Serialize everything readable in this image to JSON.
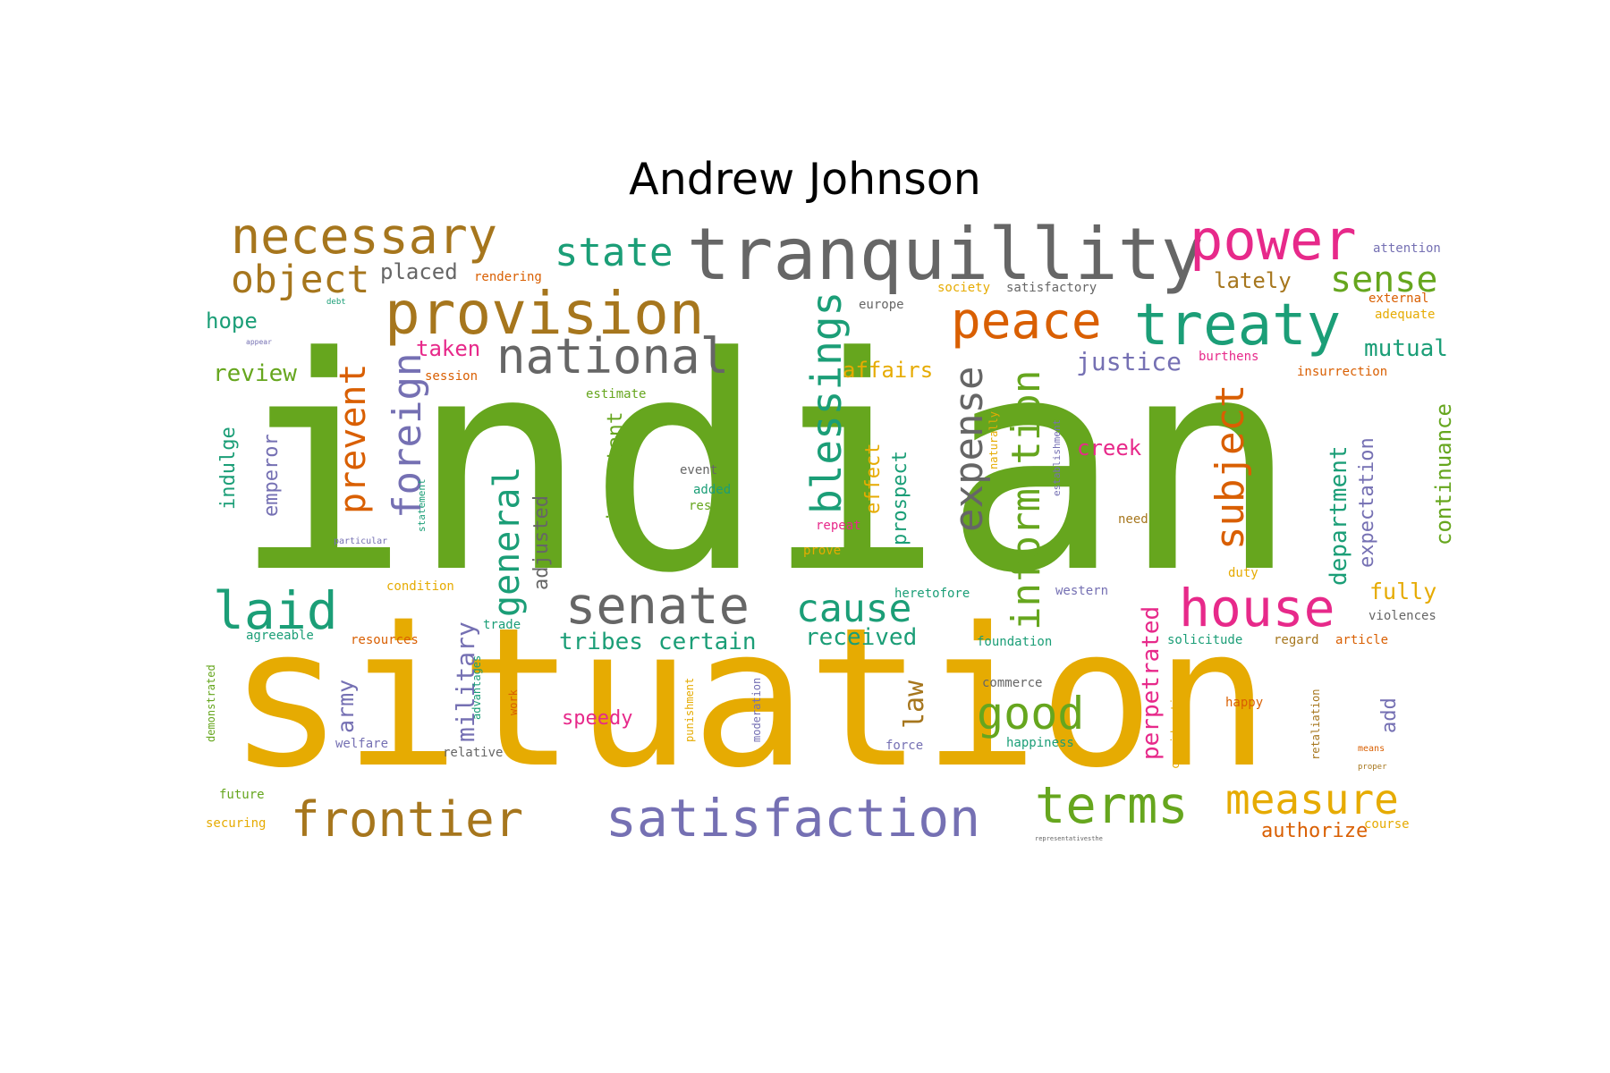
{
  "title": "Andrew Johnson",
  "palette": {
    "green": "#66a61e",
    "gold": "#e6ab02",
    "teal": "#1b9e77",
    "orange": "#d95f02",
    "purple": "#7570b3",
    "pink": "#e7298a",
    "brown": "#a6761d",
    "gray": "#666666"
  },
  "words": [
    {
      "text": "indian",
      "color": "green"
    },
    {
      "text": "situation",
      "color": "gold"
    },
    {
      "text": "tranquillity",
      "color": "gray"
    },
    {
      "text": "power",
      "color": "pink"
    },
    {
      "text": "necessary",
      "color": "brown"
    },
    {
      "text": "provision",
      "color": "brown"
    },
    {
      "text": "treaty",
      "color": "teal"
    },
    {
      "text": "peace",
      "color": "orange"
    },
    {
      "text": "national",
      "color": "gray"
    },
    {
      "text": "state",
      "color": "teal"
    },
    {
      "text": "object",
      "color": "brown"
    },
    {
      "text": "sense",
      "color": "green"
    },
    {
      "text": "senate",
      "color": "gray"
    },
    {
      "text": "house",
      "color": "pink"
    },
    {
      "text": "laid",
      "color": "teal"
    },
    {
      "text": "cause",
      "color": "teal"
    },
    {
      "text": "frontier",
      "color": "brown"
    },
    {
      "text": "satisfaction",
      "color": "purple"
    },
    {
      "text": "terms",
      "color": "green"
    },
    {
      "text": "measure",
      "color": "gold"
    },
    {
      "text": "good",
      "color": "green"
    },
    {
      "text": "blessings",
      "color": "teal"
    },
    {
      "text": "information",
      "color": "green"
    },
    {
      "text": "expense",
      "color": "gray"
    },
    {
      "text": "subject",
      "color": "orange"
    },
    {
      "text": "foreign",
      "color": "purple"
    },
    {
      "text": "prevent",
      "color": "orange"
    },
    {
      "text": "general",
      "color": "teal"
    },
    {
      "text": "justice",
      "color": "purple"
    },
    {
      "text": "mutual",
      "color": "teal"
    },
    {
      "text": "lately",
      "color": "brown"
    },
    {
      "text": "placed",
      "color": "gray"
    },
    {
      "text": "review",
      "color": "green"
    },
    {
      "text": "hope",
      "color": "teal"
    },
    {
      "text": "taken",
      "color": "pink"
    },
    {
      "text": "creek",
      "color": "pink"
    },
    {
      "text": "affairs",
      "color": "gold"
    },
    {
      "text": "fully",
      "color": "gold"
    },
    {
      "text": "received",
      "color": "teal"
    },
    {
      "text": "tribes",
      "color": "teal"
    },
    {
      "text": "certain",
      "color": "teal"
    },
    {
      "text": "military",
      "color": "purple"
    },
    {
      "text": "army",
      "color": "purple"
    },
    {
      "text": "law",
      "color": "brown"
    },
    {
      "text": "speedy",
      "color": "pink"
    },
    {
      "text": "authorize",
      "color": "orange"
    },
    {
      "text": "department",
      "color": "teal"
    },
    {
      "text": "continuance",
      "color": "green"
    },
    {
      "text": "expectation",
      "color": "purple"
    },
    {
      "text": "perpetrated",
      "color": "pink"
    },
    {
      "text": "important",
      "color": "green"
    },
    {
      "text": "adjusted",
      "color": "gray"
    },
    {
      "text": "emperor",
      "color": "purple"
    },
    {
      "text": "indulge",
      "color": "teal"
    },
    {
      "text": "effect",
      "color": "gold"
    },
    {
      "text": "prospect",
      "color": "teal"
    },
    {
      "text": "add",
      "color": "purple"
    },
    {
      "text": "rendering",
      "color": "orange"
    },
    {
      "text": "society",
      "color": "gold"
    },
    {
      "text": "satisfactory",
      "color": "gray"
    },
    {
      "text": "attention",
      "color": "purple"
    },
    {
      "text": "external",
      "color": "orange"
    },
    {
      "text": "adequate",
      "color": "gold"
    },
    {
      "text": "europe",
      "color": "gray"
    },
    {
      "text": "debt",
      "color": "teal"
    },
    {
      "text": "appear",
      "color": "purple"
    },
    {
      "text": "session",
      "color": "orange"
    },
    {
      "text": "burthens",
      "color": "pink"
    },
    {
      "text": "insurrection",
      "color": "orange"
    },
    {
      "text": "estimate",
      "color": "green"
    },
    {
      "text": "naturally",
      "color": "gold"
    },
    {
      "text": "establishment",
      "color": "purple"
    },
    {
      "text": "statement",
      "color": "teal"
    },
    {
      "text": "particular",
      "color": "purple"
    },
    {
      "text": "event",
      "color": "gray"
    },
    {
      "text": "added",
      "color": "teal"
    },
    {
      "text": "result",
      "color": "green"
    },
    {
      "text": "repeat",
      "color": "pink"
    },
    {
      "text": "prove",
      "color": "gold"
    },
    {
      "text": "need",
      "color": "brown"
    },
    {
      "text": "duty",
      "color": "gold"
    },
    {
      "text": "condition",
      "color": "gold"
    },
    {
      "text": "heretofore",
      "color": "teal"
    },
    {
      "text": "western",
      "color": "purple"
    },
    {
      "text": "violences",
      "color": "gray"
    },
    {
      "text": "agreeable",
      "color": "teal"
    },
    {
      "text": "trade",
      "color": "teal"
    },
    {
      "text": "resources",
      "color": "orange"
    },
    {
      "text": "foundation",
      "color": "teal"
    },
    {
      "text": "solicitude",
      "color": "teal"
    },
    {
      "text": "regard",
      "color": "brown"
    },
    {
      "text": "article",
      "color": "orange"
    },
    {
      "text": "commerce",
      "color": "gray"
    },
    {
      "text": "happy",
      "color": "orange"
    },
    {
      "text": "demonstrated",
      "color": "green"
    },
    {
      "text": "advantages",
      "color": "teal"
    },
    {
      "text": "work",
      "color": "orange"
    },
    {
      "text": "punishment",
      "color": "gold"
    },
    {
      "text": "moderation",
      "color": "purple"
    },
    {
      "text": "welfare",
      "color": "purple"
    },
    {
      "text": "relative",
      "color": "gray"
    },
    {
      "text": "force",
      "color": "purple"
    },
    {
      "text": "happiness",
      "color": "teal"
    },
    {
      "text": "consideration",
      "color": "gold"
    },
    {
      "text": "retaliation",
      "color": "brown"
    },
    {
      "text": "means",
      "color": "orange"
    },
    {
      "text": "proper",
      "color": "brown"
    },
    {
      "text": "future",
      "color": "green"
    },
    {
      "text": "securing",
      "color": "gold"
    },
    {
      "text": "representativesthe",
      "color": "gray"
    },
    {
      "text": "course",
      "color": "gold"
    }
  ]
}
